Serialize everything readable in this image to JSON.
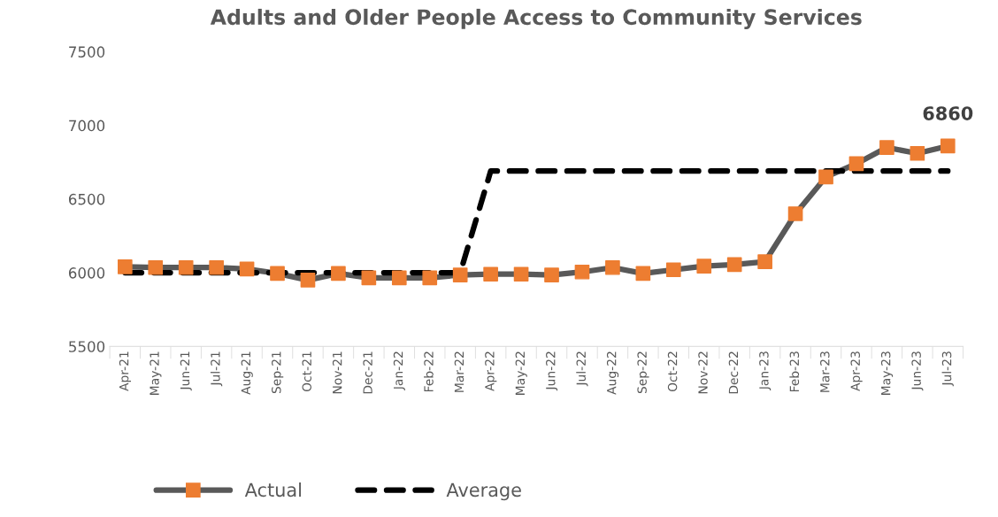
{
  "chart_data": {
    "type": "line",
    "title": "Adults and Older People Access to Community Services",
    "categories": [
      "Apr-21",
      "May-21",
      "Jun-21",
      "Jul-21",
      "Aug-21",
      "Sep-21",
      "Oct-21",
      "Nov-21",
      "Dec-21",
      "Jan-22",
      "Feb-22",
      "Mar-22",
      "Apr-22",
      "May-22",
      "Jun-22",
      "Jul-22",
      "Aug-22",
      "Sep-22",
      "Oct-22",
      "Nov-22",
      "Dec-22",
      "Jan-23",
      "Feb-23",
      "Mar-23",
      "Apr-23",
      "May-23",
      "Jun-23",
      "Jul-23"
    ],
    "series": [
      {
        "name": "Actual",
        "color": "#595959",
        "colors": [
          "#ed7d31",
          "#ed7d31",
          "#ed7d31",
          "#ed7d31",
          "#ed7d31",
          "#ed7d31",
          "#ed7d31",
          "#ed7d31",
          "#ed7d31",
          "#ed7d31",
          "#ed7d31",
          "#ed7d31",
          "#ed7d31",
          "#ed7d31",
          "#ed7d31",
          "#ed7d31",
          "#ed7d31",
          "#ed7d31",
          "#ed7d31",
          "#ed7d31",
          "#ed7d31",
          "#ed7d31",
          "#ed7d31",
          "#ed7d31",
          "#ed7d31",
          "#ed7d31",
          "#ed7d31",
          "#ed7d31"
        ],
        "marker": "square",
        "line_style": "solid",
        "values": [
          6040,
          6035,
          6035,
          6035,
          6025,
          5995,
          5950,
          5995,
          5965,
          5965,
          5965,
          5985,
          5990,
          5990,
          5985,
          6005,
          6035,
          5995,
          6020,
          6045,
          6055,
          6075,
          6400,
          6650,
          6740,
          6850,
          6810,
          6860
        ]
      },
      {
        "name": "Average",
        "color": "#000000",
        "marker": "none",
        "line_style": "dashed",
        "values": [
          6000,
          6000,
          6000,
          6000,
          6000,
          6000,
          6000,
          6000,
          6000,
          6000,
          6000,
          6000,
          6690,
          6690,
          6690,
          6690,
          6690,
          6690,
          6690,
          6690,
          6690,
          6690,
          6690,
          6690,
          6690,
          6690,
          6690,
          6690
        ]
      }
    ],
    "ylim": [
      5500,
      7500
    ],
    "yticks": [
      5500,
      6000,
      6500,
      7000,
      7500
    ],
    "grid": false,
    "legend": "bottom left",
    "annotations": [
      {
        "text": "6860",
        "x": "Jul-23",
        "y": 6860
      }
    ]
  }
}
